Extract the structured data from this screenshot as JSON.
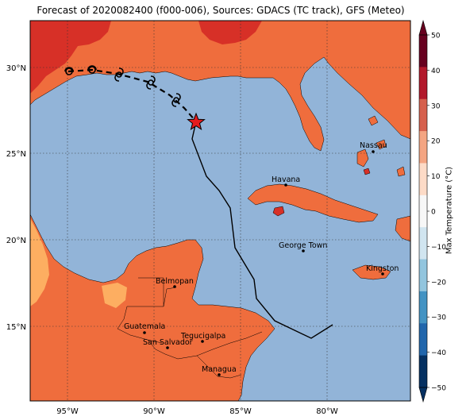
{
  "title": "Forecast of 2020082400 (f000-006), Sources: GDACS (TC track), GFS (Meteo)",
  "colorbar": {
    "label": "Max Temperature (°C)",
    "ticks": [
      "50",
      "40",
      "30",
      "20",
      "10",
      "0",
      "−10",
      "−20",
      "−30",
      "−40",
      "−50"
    ],
    "colors": [
      "#67001f",
      "#b2182b",
      "#d6604d",
      "#f4a582",
      "#fddbc7",
      "#f7f7f7",
      "#d1e5f0",
      "#92c5de",
      "#4393c3",
      "#2166ac",
      "#053061"
    ]
  },
  "axes": {
    "lat_labels": [
      "30°N",
      "25°N",
      "20°N",
      "15°N"
    ],
    "lon_labels": [
      "95°W",
      "90°W",
      "85°W",
      "80°W"
    ]
  },
  "cities": [
    {
      "name": "Havana"
    },
    {
      "name": "Nassau"
    },
    {
      "name": "George Town"
    },
    {
      "name": "Kingston"
    },
    {
      "name": "Belmopan"
    },
    {
      "name": "Guatemala"
    },
    {
      "name": "Tegucigalpa"
    },
    {
      "name": "San Salvador"
    },
    {
      "name": "Managua"
    }
  ],
  "colors": {
    "ocean": "#92b4d8",
    "land_warm": "#ef6d3d",
    "land_hot": "#d73027",
    "land_mild": "#fdae61",
    "track": "#000000",
    "current_position": "#e41a1c"
  }
}
